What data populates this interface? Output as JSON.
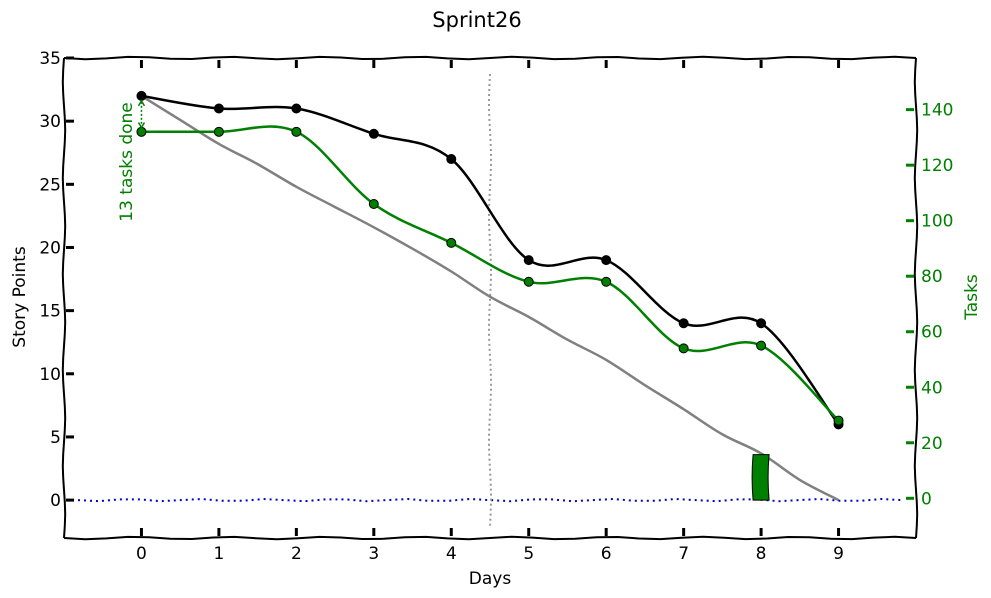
{
  "chart_data": {
    "type": "line",
    "title": "Sprint26",
    "xlabel": "Days",
    "ylabel": "Story Points",
    "y2label": "Tasks",
    "xlim": [
      -1,
      10
    ],
    "ylim": [
      -3,
      35
    ],
    "y2lim": [
      -14.3,
      158.6
    ],
    "x_ticks": [
      0,
      1,
      2,
      3,
      4,
      5,
      6,
      7,
      8,
      9
    ],
    "y_ticks": [
      0,
      5,
      10,
      15,
      20,
      25,
      30,
      35
    ],
    "y2_ticks": [
      0,
      20,
      40,
      60,
      80,
      100,
      120,
      140
    ],
    "x": [
      0,
      1,
      2,
      3,
      4,
      5,
      6,
      7,
      8,
      9
    ],
    "ideal": [
      [
        0,
        32.0
      ],
      [
        0.5,
        30.1
      ],
      [
        1,
        28.2
      ],
      [
        1.5,
        26.6
      ],
      [
        2,
        24.8
      ],
      [
        2.5,
        23.2
      ],
      [
        3,
        21.6
      ],
      [
        3.5,
        19.9
      ],
      [
        4,
        18.1
      ],
      [
        4.5,
        16.1
      ],
      [
        5,
        14.5
      ],
      [
        5.5,
        12.7
      ],
      [
        6,
        11.1
      ],
      [
        6.5,
        9.1
      ],
      [
        7,
        7.2
      ],
      [
        7.5,
        5.2
      ],
      [
        8,
        3.7
      ],
      [
        8.5,
        1.6
      ],
      [
        9,
        0
      ]
    ],
    "series": [
      {
        "name": "",
        "axis": "left",
        "color": "#000000",
        "values": [
          32,
          31,
          31,
          29,
          27,
          19,
          19,
          14,
          14,
          6
        ]
      },
      {
        "name": "",
        "axis": "right",
        "color": "#008000",
        "values": [
          132,
          132,
          132,
          106,
          92,
          78,
          78,
          54,
          55,
          28
        ]
      }
    ],
    "baseline": {
      "value": 0,
      "color": "#0000cc",
      "style": "dotted"
    },
    "today_marker": {
      "x": 4.5,
      "color": "#999999",
      "style": "dotted"
    },
    "bar": {
      "x": 8,
      "value": 3.6,
      "color": "#008000"
    },
    "annotation": {
      "text": "13 tasks done",
      "x": 0,
      "y_from": 32,
      "y_to": 29.1,
      "color": "#008000"
    },
    "colors": {
      "scope": "#000000",
      "tasks": "#008000",
      "ideal": "#808080",
      "baseline": "#0000cc"
    },
    "grid": false,
    "style": "xkcd"
  }
}
